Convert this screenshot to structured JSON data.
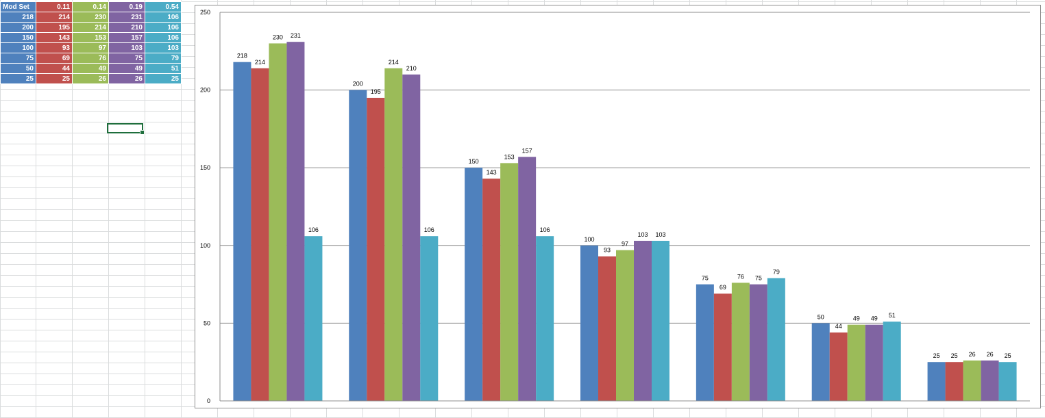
{
  "table": {
    "header": [
      "Mod Set",
      "0.11",
      "0.14",
      "0.19",
      "0.54"
    ],
    "rows": [
      [
        "218",
        "214",
        "230",
        "231",
        "106"
      ],
      [
        "200",
        "195",
        "214",
        "210",
        "106"
      ],
      [
        "150",
        "143",
        "153",
        "157",
        "106"
      ],
      [
        "100",
        "93",
        "97",
        "103",
        "103"
      ],
      [
        "75",
        "69",
        "76",
        "75",
        "79"
      ],
      [
        "50",
        "44",
        "49",
        "49",
        "51"
      ],
      [
        "25",
        "25",
        "26",
        "26",
        "25"
      ]
    ],
    "column_colors": [
      "#4f81bd",
      "#c0504d",
      "#9bbb59",
      "#8064a2",
      "#4bacc6"
    ]
  },
  "chart_data": {
    "type": "bar",
    "categories": [
      "",
      "",
      "",
      "",
      "",
      "",
      ""
    ],
    "series": [
      {
        "values": [
          218,
          200,
          150,
          100,
          75,
          50,
          25
        ],
        "color": "#4f81bd"
      },
      {
        "values": [
          214,
          195,
          143,
          93,
          69,
          44,
          25
        ],
        "color": "#c0504d"
      },
      {
        "values": [
          230,
          214,
          153,
          97,
          76,
          49,
          26
        ],
        "color": "#9bbb59"
      },
      {
        "values": [
          231,
          210,
          157,
          103,
          75,
          49,
          26
        ],
        "color": "#8064a2"
      },
      {
        "values": [
          106,
          106,
          106,
          103,
          79,
          51,
          25
        ],
        "color": "#4bacc6"
      }
    ],
    "ylim": [
      0,
      250
    ],
    "yticks": [
      "0",
      "50",
      "100",
      "150",
      "200",
      "250"
    ],
    "title": "",
    "xlabel": "",
    "ylabel": "",
    "grid": true,
    "legend": "none",
    "data_labels": true
  }
}
